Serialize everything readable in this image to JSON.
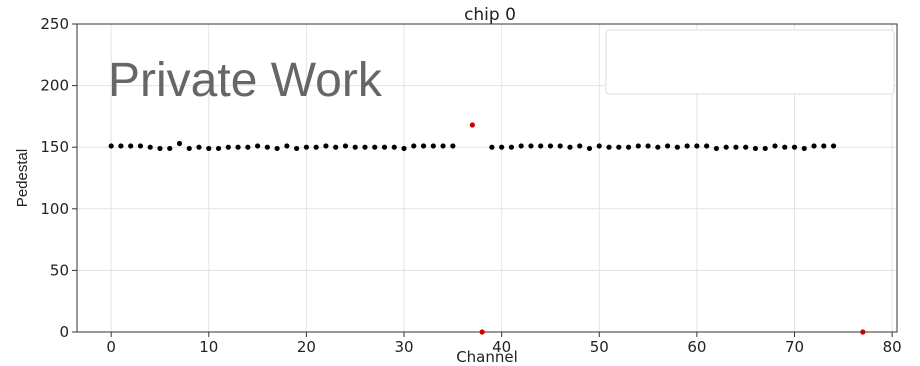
{
  "chart_data": {
    "type": "scatter",
    "title": "chip 0",
    "xlabel": "Channel",
    "ylabel": "Pedestal",
    "xlim": [
      -3.5,
      80.5
    ],
    "ylim": [
      0,
      250
    ],
    "xticks": [
      0,
      10,
      20,
      30,
      40,
      50,
      60,
      70,
      80
    ],
    "yticks": [
      0,
      50,
      100,
      150,
      200,
      250
    ],
    "grid": true,
    "watermark": "Private Work",
    "legend": "top-right (empty box)",
    "colors": {
      "normal": "#000000",
      "outlier": "#cc0000",
      "grid": "#e3e3e3"
    },
    "series": [
      {
        "color": "#000000",
        "points": [
          [
            0,
            151
          ],
          [
            1,
            151
          ],
          [
            2,
            151
          ],
          [
            3,
            151
          ],
          [
            4,
            150
          ],
          [
            5,
            149
          ],
          [
            6,
            149
          ],
          [
            7,
            153
          ],
          [
            8,
            149
          ],
          [
            9,
            150
          ],
          [
            10,
            149
          ],
          [
            11,
            149
          ],
          [
            12,
            150
          ],
          [
            13,
            150
          ],
          [
            14,
            150
          ],
          [
            15,
            151
          ],
          [
            16,
            150
          ],
          [
            17,
            149
          ],
          [
            18,
            151
          ],
          [
            19,
            149
          ],
          [
            20,
            150
          ],
          [
            21,
            150
          ],
          [
            22,
            151
          ],
          [
            23,
            150
          ],
          [
            24,
            151
          ],
          [
            25,
            150
          ],
          [
            26,
            150
          ],
          [
            27,
            150
          ],
          [
            28,
            150
          ],
          [
            29,
            150
          ],
          [
            30,
            149
          ],
          [
            31,
            151
          ],
          [
            32,
            151
          ],
          [
            33,
            151
          ],
          [
            34,
            151
          ],
          [
            35,
            151
          ],
          [
            39,
            150
          ],
          [
            40,
            150
          ],
          [
            41,
            150
          ],
          [
            42,
            151
          ],
          [
            43,
            151
          ],
          [
            44,
            151
          ],
          [
            45,
            151
          ],
          [
            46,
            151
          ],
          [
            47,
            150
          ],
          [
            48,
            151
          ],
          [
            49,
            149
          ],
          [
            50,
            151
          ],
          [
            51,
            150
          ],
          [
            52,
            150
          ],
          [
            53,
            150
          ],
          [
            54,
            151
          ],
          [
            55,
            151
          ],
          [
            56,
            150
          ],
          [
            57,
            151
          ],
          [
            58,
            150
          ],
          [
            59,
            151
          ],
          [
            60,
            151
          ],
          [
            61,
            151
          ],
          [
            62,
            149
          ],
          [
            63,
            150
          ],
          [
            64,
            150
          ],
          [
            65,
            150
          ],
          [
            66,
            149
          ],
          [
            67,
            149
          ],
          [
            68,
            151
          ],
          [
            69,
            150
          ],
          [
            70,
            150
          ],
          [
            71,
            149
          ],
          [
            72,
            151
          ],
          [
            73,
            151
          ],
          [
            74,
            151
          ]
        ]
      },
      {
        "color": "#cc0000",
        "points": [
          [
            37,
            168
          ],
          [
            38,
            0
          ],
          [
            77,
            0
          ]
        ]
      }
    ]
  }
}
